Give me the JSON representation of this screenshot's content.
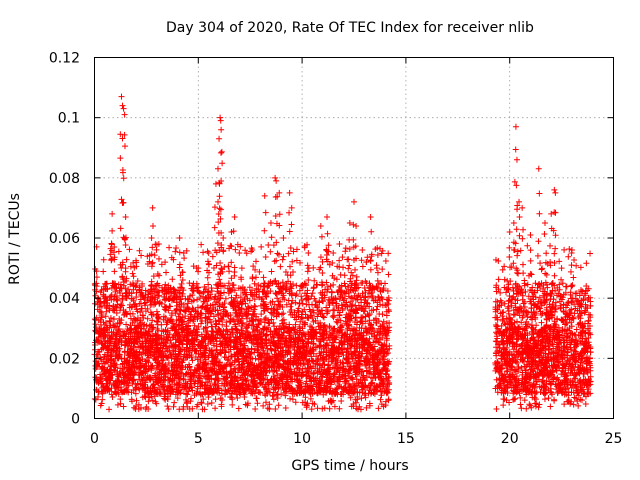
{
  "chart_data": {
    "type": "scatter",
    "title": "Day 304 of 2020, Rate Of TEC Index for receiver nlib",
    "xlabel": "GPS time / hours",
    "ylabel": "ROTI / TECUs",
    "xlim": [
      0,
      25
    ],
    "ylim": [
      0,
      0.12
    ],
    "x_ticks": [
      0,
      5,
      10,
      15,
      20,
      25
    ],
    "x_tick_labels": [
      "0",
      "5",
      "10",
      "15",
      "20",
      "25"
    ],
    "y_ticks": [
      0,
      0.02,
      0.04,
      0.06,
      0.08,
      0.1,
      0.12
    ],
    "y_tick_labels": [
      "0",
      "0.02",
      "0.04",
      "0.06",
      "0.08",
      "0.1",
      "0.12"
    ],
    "grid": true,
    "marker": "+",
    "color": "#ff0000",
    "series": [
      {
        "name": "ROTI",
        "data_segments": [
          {
            "x_range": [
              0,
              14.2
            ],
            "typical_range": [
              0.008,
              0.03
            ]
          },
          {
            "x_range": [
              19.3,
              23.9
            ],
            "typical_range": [
              0.008,
              0.03
            ]
          }
        ],
        "peaks": [
          [
            0.1,
            0.049
          ],
          [
            0.3,
            0.042
          ],
          [
            0.55,
            0.043
          ],
          [
            0.85,
            0.068
          ],
          [
            0.95,
            0.057
          ],
          [
            1.3,
            0.107
          ],
          [
            1.35,
            0.104
          ],
          [
            1.4,
            0.103
          ],
          [
            1.45,
            0.101
          ],
          [
            1.5,
            0.067
          ],
          [
            1.5,
            0.05
          ],
          [
            2.2,
            0.042
          ],
          [
            2.8,
            0.07
          ],
          [
            2.75,
            0.06
          ],
          [
            3.1,
            0.058
          ],
          [
            3.4,
            0.052
          ],
          [
            4.1,
            0.06
          ],
          [
            4.3,
            0.055
          ],
          [
            5.0,
            0.05
          ],
          [
            5.5,
            0.055
          ],
          [
            5.85,
            0.078
          ],
          [
            5.95,
            0.072
          ],
          [
            6.05,
            0.1
          ],
          [
            6.08,
            0.099
          ],
          [
            6.1,
            0.096
          ],
          [
            6.0,
            0.093
          ],
          [
            6.2,
            0.06
          ],
          [
            6.6,
            0.062
          ],
          [
            6.75,
            0.067
          ],
          [
            7.1,
            0.05
          ],
          [
            7.6,
            0.056
          ],
          [
            8.2,
            0.074
          ],
          [
            8.5,
            0.065
          ],
          [
            8.7,
            0.08
          ],
          [
            8.75,
            0.079
          ],
          [
            8.9,
            0.075
          ],
          [
            9.1,
            0.06
          ],
          [
            9.4,
            0.075
          ],
          [
            9.5,
            0.07
          ],
          [
            10.3,
            0.055
          ],
          [
            10.9,
            0.064
          ],
          [
            11.2,
            0.067
          ],
          [
            11.5,
            0.055
          ],
          [
            11.8,
            0.058
          ],
          [
            12.3,
            0.065
          ],
          [
            12.5,
            0.072
          ],
          [
            12.6,
            0.064
          ],
          [
            12.9,
            0.056
          ],
          [
            13.3,
            0.067
          ],
          [
            13.6,
            0.05
          ],
          [
            20.0,
            0.062
          ],
          [
            20.2,
            0.065
          ],
          [
            20.3,
            0.097
          ],
          [
            20.35,
            0.086
          ],
          [
            20.45,
            0.072
          ],
          [
            20.6,
            0.07
          ],
          [
            21.0,
            0.061
          ],
          [
            21.4,
            0.083
          ],
          [
            21.7,
            0.065
          ],
          [
            22.0,
            0.068
          ],
          [
            22.15,
            0.076
          ],
          [
            22.2,
            0.075
          ],
          [
            22.5,
            0.05
          ],
          [
            23.0,
            0.056
          ],
          [
            23.5,
            0.03
          ]
        ]
      }
    ]
  }
}
